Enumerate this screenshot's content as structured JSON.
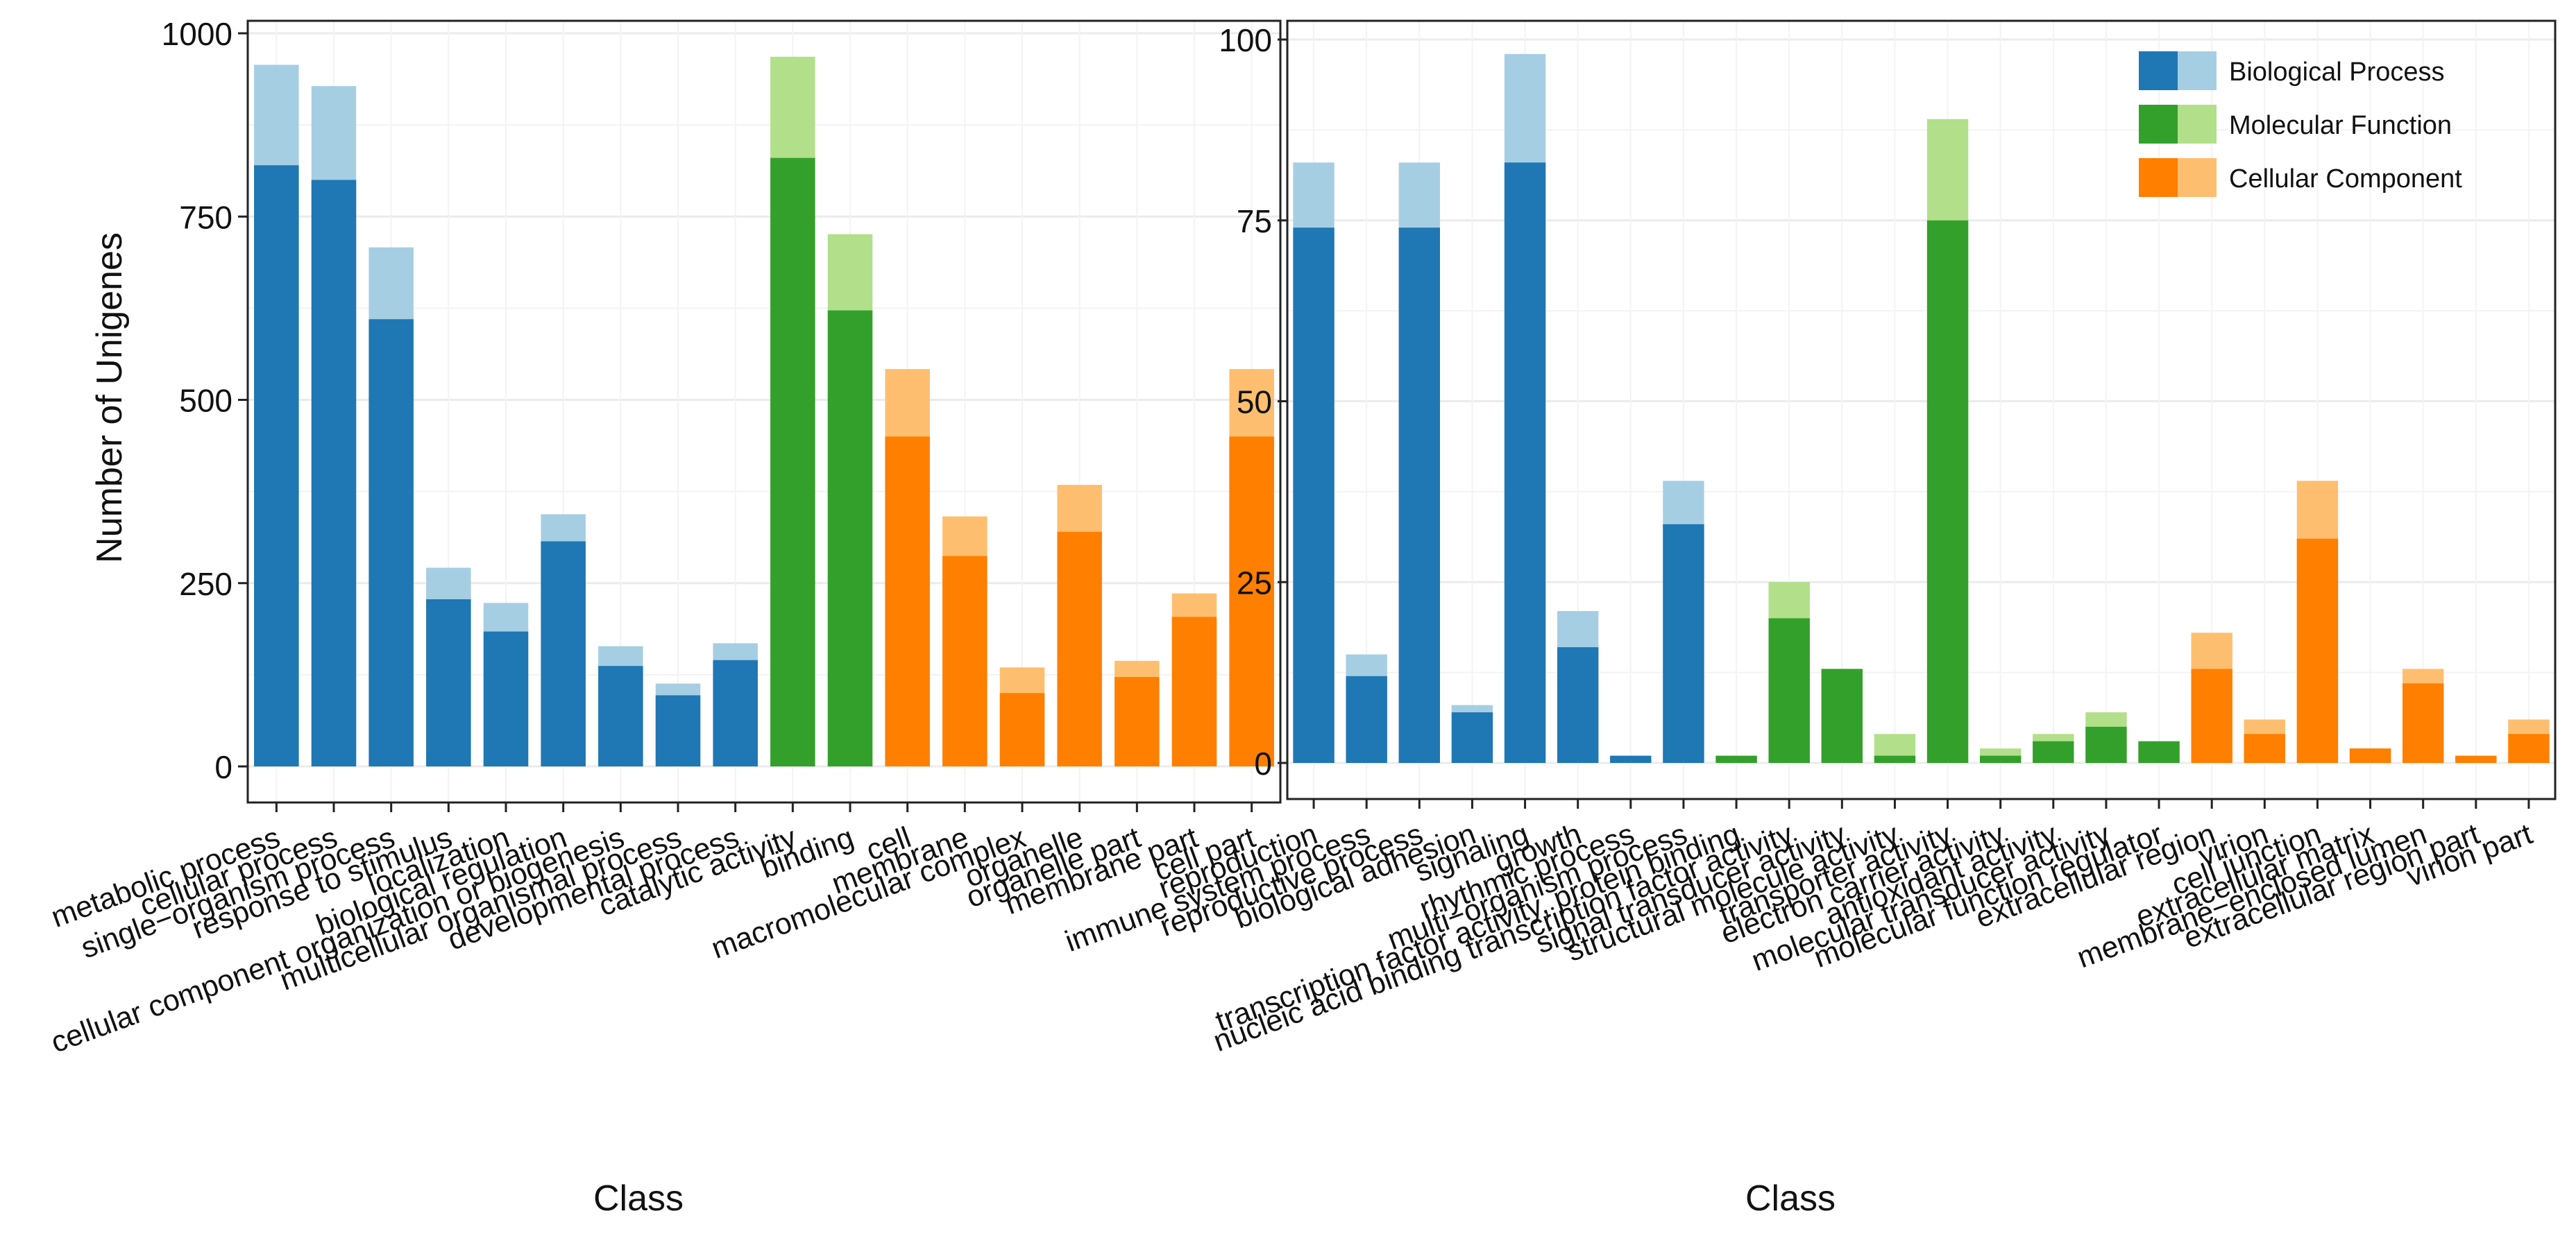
{
  "colors": {
    "bp_dark": "#1f77b4",
    "bp_light": "#a6cee3",
    "mf_dark": "#33a02c",
    "mf_light": "#b2df8a",
    "cc_dark": "#ff7f00",
    "cc_light": "#fdbf6f",
    "grid": "#ebebeb",
    "axis": "#222222"
  },
  "legend": {
    "items": [
      {
        "label": "Biological Process",
        "group": "bp"
      },
      {
        "label": "Molecular Function",
        "group": "mf"
      },
      {
        "label": "Cellular Component",
        "group": "cc"
      }
    ]
  },
  "chart_data": [
    {
      "type": "bar",
      "stacked": true,
      "title": "",
      "xlabel": "Class",
      "ylabel": "Number of Unigenes",
      "ylim": [
        0,
        1000
      ],
      "yticks": [
        0,
        250,
        500,
        750,
        1000
      ],
      "series_meaning": [
        "dark segment (lower value)",
        "light segment (total)"
      ],
      "categories": [
        "metabolic process",
        "cellular process",
        "single−organism process",
        "response to stimulus",
        "localization",
        "biological regulation",
        "cellular component organization or biogenesis",
        "multicellular organismal process",
        "developmental process",
        "catalytic activity",
        "binding",
        "cell",
        "membrane",
        "macromolecular complex",
        "organelle",
        "organelle part",
        "membrane part",
        "cell part"
      ],
      "groups": [
        "bp",
        "bp",
        "bp",
        "bp",
        "bp",
        "bp",
        "bp",
        "bp",
        "bp",
        "mf",
        "mf",
        "cc",
        "cc",
        "cc",
        "cc",
        "cc",
        "cc",
        "cc"
      ],
      "dark_values": [
        820,
        800,
        610,
        228,
        184,
        307,
        137,
        97,
        145,
        830,
        622,
        450,
        287,
        100,
        320,
        122,
        204,
        450
      ],
      "total_values": [
        957,
        928,
        708,
        271,
        223,
        344,
        164,
        113,
        168,
        968,
        726,
        542,
        341,
        135,
        384,
        144,
        236,
        542
      ]
    },
    {
      "type": "bar",
      "stacked": true,
      "title": "",
      "xlabel": "Class",
      "ylabel": "",
      "ylim": [
        0,
        100
      ],
      "yticks": [
        0,
        25,
        50,
        75,
        100
      ],
      "legend_position": "top-right",
      "series_meaning": [
        "dark segment (lower value)",
        "light segment (total)"
      ],
      "categories": [
        "reproduction",
        "immune system process",
        "reproductive process",
        "biological adhesion",
        "signaling",
        "growth",
        "rhythmic process",
        "multi−organism process",
        "transcription factor activity, protein binding",
        "nucleic acid binding transcription factor activity",
        "signal transducer activity",
        "structural molecule activity",
        "transporter activity",
        "electron carrier activity",
        "antioxidant activity",
        "molecular transducer activity",
        "molecular function regulator",
        "extracellular region",
        "virion",
        "cell junction",
        "extracellular matrix",
        "membrane−enclosed lumen",
        "extracellular region part",
        "virion part"
      ],
      "groups": [
        "bp",
        "bp",
        "bp",
        "bp",
        "bp",
        "bp",
        "bp",
        "bp",
        "mf",
        "mf",
        "mf",
        "mf",
        "mf",
        "mf",
        "mf",
        "mf",
        "mf",
        "cc",
        "cc",
        "cc",
        "cc",
        "cc",
        "cc",
        "cc"
      ],
      "dark_values": [
        74,
        12,
        74,
        7,
        83,
        16,
        1,
        33,
        1,
        20,
        13,
        1,
        75,
        1,
        3,
        5,
        3,
        13,
        4,
        31,
        2,
        11,
        1,
        4
      ],
      "total_values": [
        83,
        15,
        83,
        8,
        98,
        21,
        1,
        39,
        1,
        25,
        13,
        4,
        89,
        2,
        4,
        7,
        3,
        18,
        6,
        39,
        2,
        13,
        1,
        6
      ]
    }
  ]
}
